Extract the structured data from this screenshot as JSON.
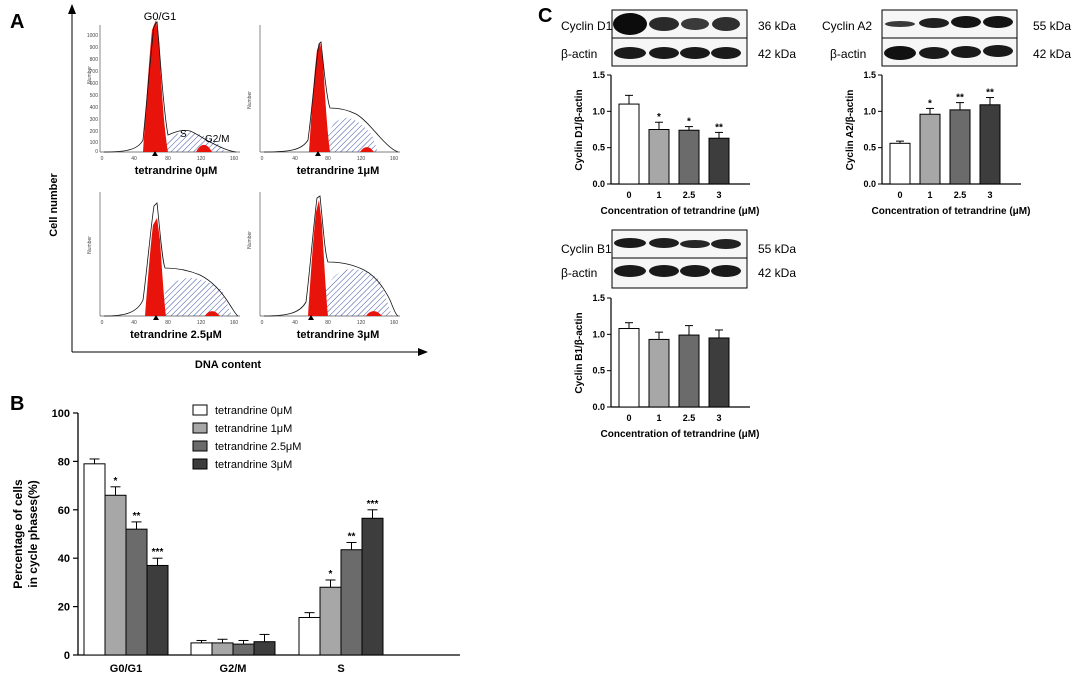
{
  "panels": {
    "a": "A",
    "b": "B",
    "c": "C"
  },
  "flow": {
    "y_axis_label": "Cell number",
    "x_axis_label": "DNA content",
    "histograms": [
      {
        "caption": "tetrandrine 0μM",
        "peak_labels": [
          "G0/G1",
          "S",
          "G2/M"
        ],
        "y_ticks": [
          "200",
          "300",
          "400",
          "500",
          "600",
          "700",
          "800",
          "900",
          "1000"
        ],
        "y_ticks_low": [
          "100",
          "0"
        ],
        "y_label": "Number"
      },
      {
        "caption": "tetrandrine 1μM",
        "y_label": "Number"
      },
      {
        "caption": "tetrandrine 2.5μM",
        "y_label": "Number"
      },
      {
        "caption": "tetrandrine 3μM",
        "y_label": "Number"
      }
    ],
    "x_ticks": [
      "0",
      "40",
      "80",
      "120",
      "160"
    ]
  },
  "blots": [
    {
      "protein": "Cyclin D1",
      "protein_kda": "36 kDa",
      "actin": "β-actin",
      "actin_kda": "42 kDa"
    },
    {
      "protein": "Cyclin A2",
      "protein_kda": "55 kDa",
      "actin": "β-actin",
      "actin_kda": "42 kDa"
    },
    {
      "protein": "Cyclin B1",
      "protein_kda": "55 kDa",
      "actin": "β-actin",
      "actin_kda": "42 kDa"
    }
  ],
  "chart_data": [
    {
      "id": "cell-cycle",
      "type": "bar",
      "ylabel_line1": "Percentage of  cells",
      "ylabel_line2": "in cycle phases(%)",
      "categories": [
        "G0/G1",
        "G2/M",
        "S"
      ],
      "ylim": [
        0,
        100
      ],
      "yticks": [
        0,
        20,
        40,
        60,
        80,
        100
      ],
      "series": [
        {
          "name": "tetrandrine 0μM",
          "color": "#ffffff",
          "values": [
            79,
            5,
            15.5
          ],
          "errors": [
            2,
            1,
            2
          ],
          "stars": [
            "",
            "",
            ""
          ]
        },
        {
          "name": "tetrandrine 1μM",
          "color": "#a7a7a7",
          "values": [
            66,
            5,
            28
          ],
          "errors": [
            3.5,
            1.5,
            3
          ],
          "stars": [
            "*",
            "",
            "*"
          ]
        },
        {
          "name": "tetrandrine 2.5μM",
          "color": "#6b6b6b",
          "values": [
            52,
            4.5,
            43.5
          ],
          "errors": [
            3,
            1.5,
            3
          ],
          "stars": [
            "**",
            "",
            "**"
          ]
        },
        {
          "name": "tetrandrine 3μM",
          "color": "#3d3d3d",
          "values": [
            37,
            5.5,
            56.5
          ],
          "errors": [
            3,
            3,
            3.5
          ],
          "stars": [
            "***",
            "",
            "***"
          ]
        }
      ]
    },
    {
      "id": "cyclin-d1",
      "type": "bar",
      "ylabel": "Cyclin D1/β-actin",
      "xlabel": "Concentration of tetrandrine (μM)",
      "categories": [
        "0",
        "1",
        "2.5",
        "3"
      ],
      "values": [
        1.1,
        0.75,
        0.74,
        0.63
      ],
      "errors": [
        0.12,
        0.1,
        0.05,
        0.08
      ],
      "stars": [
        "",
        "*",
        "*",
        "**"
      ],
      "ylim": [
        0,
        1.5
      ],
      "yticks": [
        "0.0",
        "0.5",
        "1.0",
        "1.5"
      ]
    },
    {
      "id": "cyclin-a2",
      "type": "bar",
      "ylabel": "Cyclin A2/β-actin",
      "xlabel": "Concentration of tetrandrine (μM)",
      "categories": [
        "0",
        "1",
        "2.5",
        "3"
      ],
      "values": [
        0.56,
        0.96,
        1.02,
        1.09
      ],
      "errors": [
        0.03,
        0.08,
        0.1,
        0.1
      ],
      "stars": [
        "",
        "*",
        "**",
        "**"
      ],
      "ylim": [
        0,
        1.5
      ],
      "yticks": [
        "0.0",
        "0.5",
        "1.0",
        "1.5"
      ]
    },
    {
      "id": "cyclin-b1",
      "type": "bar",
      "ylabel": "Cyclin B1/β-actin",
      "xlabel": "Concentration of tetrandrine (μM)",
      "categories": [
        "0",
        "1",
        "2.5",
        "3"
      ],
      "values": [
        1.08,
        0.93,
        0.99,
        0.95
      ],
      "errors": [
        0.08,
        0.1,
        0.13,
        0.11
      ],
      "stars": [
        "",
        "",
        "",
        ""
      ],
      "ylim": [
        0,
        1.5
      ],
      "yticks": [
        "0.0",
        "0.5",
        "1.0",
        "1.5"
      ]
    }
  ],
  "colors": {
    "red_fill": "#e8140c",
    "hatch": "#2a3f9a",
    "bar_gray": "#a7a7a7",
    "bar_dark": "#6b6b6b",
    "bar_darkest": "#3d3d3d"
  }
}
